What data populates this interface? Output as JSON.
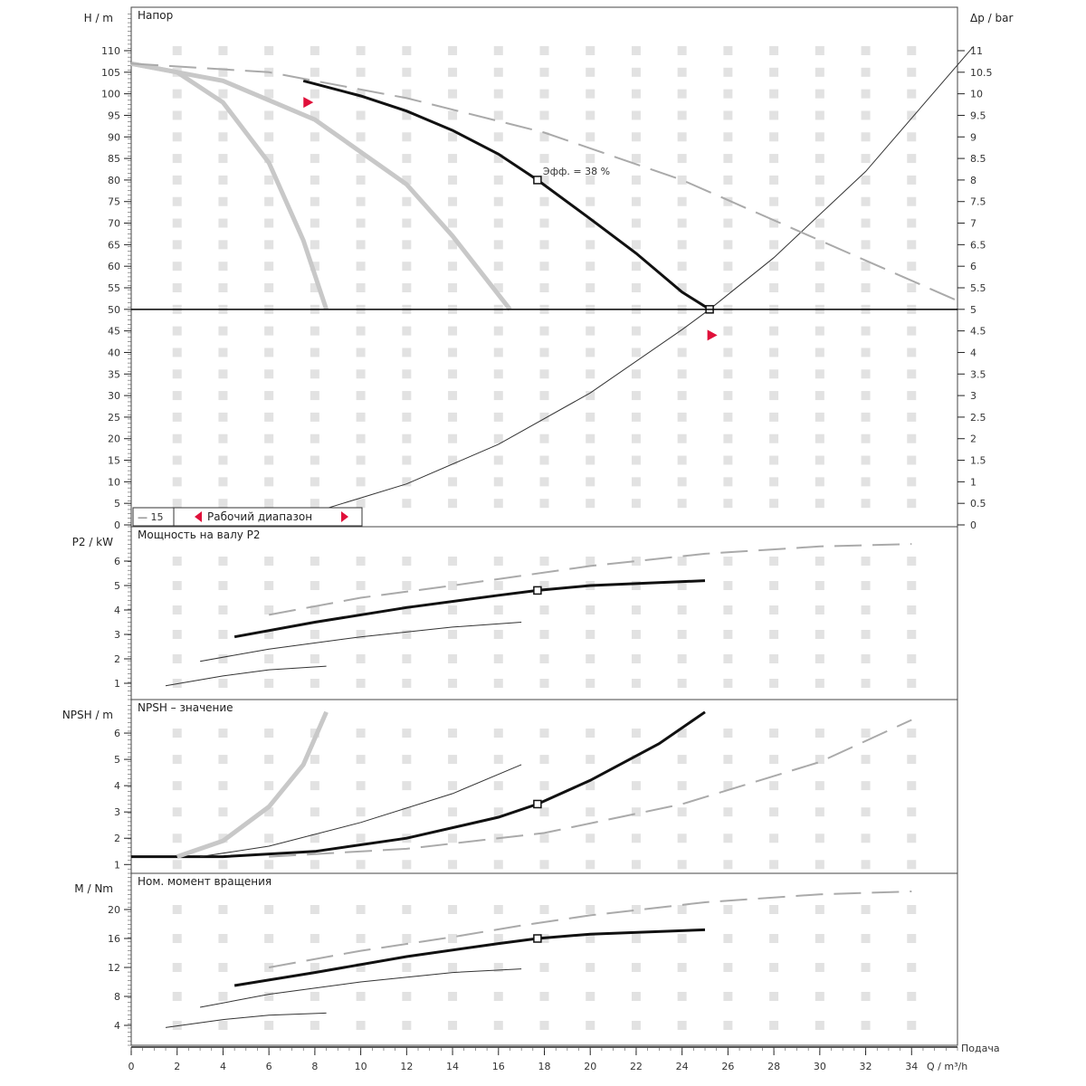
{
  "chart_data": [
    {
      "type": "line",
      "title": "Напор",
      "xlabel": "Q / m³/h",
      "ylabel": "H / m",
      "ylabel_right": "Δp / bar",
      "xlim": [
        0,
        36
      ],
      "ylim": [
        0,
        110
      ],
      "ylim_right": [
        0,
        11
      ],
      "xticks": [
        0,
        2,
        4,
        6,
        8,
        10,
        12,
        14,
        16,
        18,
        20,
        22,
        24,
        26,
        28,
        30,
        32,
        34
      ],
      "yticks": [
        0,
        5,
        10,
        15,
        20,
        25,
        30,
        35,
        40,
        45,
        50,
        55,
        60,
        65,
        70,
        75,
        80,
        85,
        90,
        95,
        100,
        105,
        110
      ],
      "yticks_right": [
        "0",
        "0.5",
        "1",
        "1.5",
        "2",
        "2.5",
        "3",
        "3.5",
        "4",
        "4.5",
        "5",
        "5.5",
        "6",
        "6.5",
        "7",
        "7.5",
        "8",
        "8.5",
        "9",
        "9.5",
        "10",
        "10.5",
        "11"
      ],
      "grid": true,
      "legend": [
        "— 15",
        "Рабочий диапазон"
      ],
      "annotation": "Эфф. = 38 %",
      "duty_line_H": 50,
      "series": [
        {
          "name": "pump-curve",
          "style": "bold",
          "x": [
            7.5,
            10,
            12,
            14,
            16,
            17.7,
            20,
            22,
            24,
            25.2
          ],
          "y": [
            103,
            99.5,
            96,
            91.5,
            86,
            80,
            71,
            63,
            54,
            50
          ]
        },
        {
          "name": "system-curve",
          "style": "thin",
          "x": [
            8,
            12,
            16,
            20,
            24,
            25.2,
            28,
            32,
            36.7
          ],
          "y": [
            3,
            9.5,
            18.7,
            30.6,
            45.3,
            50,
            62,
            82,
            111
          ]
        },
        {
          "name": "speed-curve-low",
          "style": "gray",
          "x": [
            0,
            2,
            4,
            6,
            7.5,
            8.5
          ],
          "y": [
            107,
            105,
            98,
            84,
            66,
            50
          ]
        },
        {
          "name": "speed-curve-mid",
          "style": "gray",
          "x": [
            0,
            4,
            8,
            12,
            14,
            16.5
          ],
          "y": [
            107,
            103,
            94,
            79,
            67,
            50
          ]
        },
        {
          "name": "speed-curve-max",
          "style": "dashed",
          "x": [
            0,
            6,
            12,
            18,
            24,
            30,
            36
          ],
          "y": [
            107,
            105,
            99,
            91,
            80,
            66,
            52
          ]
        }
      ],
      "operating_points": [
        {
          "x": 17.7,
          "y": 80
        },
        {
          "x": 25.2,
          "y": 50
        }
      ],
      "markers": [
        {
          "x": 7.7,
          "y": 98
        },
        {
          "x": 25.3,
          "y": 44
        }
      ]
    },
    {
      "type": "line",
      "title": "Мощность на валу P2",
      "ylabel": "P2 / kW",
      "ylim": [
        0,
        7
      ],
      "yticks": [
        1,
        2,
        3,
        4,
        5,
        6
      ],
      "series": [
        {
          "name": "p2-bold",
          "style": "bold",
          "x": [
            4.5,
            8,
            12,
            16,
            17.7,
            20,
            25
          ],
          "y": [
            2.9,
            3.5,
            4.1,
            4.6,
            4.8,
            5.0,
            5.2
          ]
        },
        {
          "name": "p2-mid",
          "style": "thin",
          "x": [
            3,
            6,
            10,
            14,
            17
          ],
          "y": [
            1.9,
            2.4,
            2.9,
            3.3,
            3.5
          ]
        },
        {
          "name": "p2-low",
          "style": "thin",
          "x": [
            1.5,
            4,
            6,
            8.5
          ],
          "y": [
            0.9,
            1.3,
            1.55,
            1.7
          ]
        },
        {
          "name": "p2-dashed",
          "style": "dashed",
          "x": [
            6,
            10,
            14,
            17,
            20,
            25,
            30,
            34
          ],
          "y": [
            3.8,
            4.5,
            5.0,
            5.4,
            5.8,
            6.3,
            6.6,
            6.7
          ]
        }
      ],
      "operating_points": [
        {
          "x": 17.7,
          "y": 4.8
        }
      ]
    },
    {
      "type": "line",
      "title": "NPSH – значение",
      "ylabel": "NPSH / m",
      "ylim": [
        0.7,
        7
      ],
      "yticks": [
        1,
        2,
        3,
        4,
        5,
        6
      ],
      "series": [
        {
          "name": "npsh-bold",
          "style": "bold",
          "x": [
            0,
            4,
            8,
            12,
            16,
            17.7,
            20,
            23,
            25
          ],
          "y": [
            1.3,
            1.3,
            1.5,
            2.0,
            2.8,
            3.3,
            4.2,
            5.6,
            6.8
          ]
        },
        {
          "name": "npsh-low",
          "style": "gray",
          "x": [
            2,
            4,
            6,
            7.5,
            8.5
          ],
          "y": [
            1.3,
            1.9,
            3.2,
            4.8,
            6.8
          ]
        },
        {
          "name": "npsh-mid",
          "style": "thin",
          "x": [
            3,
            6,
            10,
            14,
            17
          ],
          "y": [
            1.3,
            1.7,
            2.6,
            3.7,
            4.8
          ]
        },
        {
          "name": "npsh-dashed",
          "style": "dashed",
          "x": [
            6,
            12,
            18,
            24,
            30,
            34
          ],
          "y": [
            1.3,
            1.6,
            2.2,
            3.3,
            4.9,
            6.5
          ]
        }
      ],
      "operating_points": [
        {
          "x": 17.7,
          "y": 3.3
        }
      ]
    },
    {
      "type": "line",
      "title": "Ном. момент вращения",
      "ylabel": "M / Nm",
      "xlabel_right": "Подача",
      "ylim": [
        0,
        24
      ],
      "yticks": [
        4,
        8,
        12,
        16,
        20
      ],
      "series": [
        {
          "name": "torque-bold",
          "style": "bold",
          "x": [
            4.5,
            8,
            12,
            16,
            17.7,
            20,
            25
          ],
          "y": [
            9.5,
            11.3,
            13.5,
            15.3,
            16,
            16.6,
            17.2
          ]
        },
        {
          "name": "torque-mid",
          "style": "thin",
          "x": [
            3,
            6,
            10,
            14,
            17
          ],
          "y": [
            6.5,
            8.3,
            10.0,
            11.3,
            11.8
          ]
        },
        {
          "name": "torque-low",
          "style": "thin",
          "x": [
            1.5,
            4,
            6,
            8.5
          ],
          "y": [
            3.7,
            4.8,
            5.4,
            5.7
          ]
        },
        {
          "name": "torque-dashed",
          "style": "dashed",
          "x": [
            6,
            10,
            14,
            17,
            20,
            25,
            30,
            34
          ],
          "y": [
            12,
            14.3,
            16.2,
            17.8,
            19.2,
            21,
            22.1,
            22.5
          ]
        }
      ],
      "operating_points": [
        {
          "x": 17.7,
          "y": 16
        }
      ]
    }
  ]
}
